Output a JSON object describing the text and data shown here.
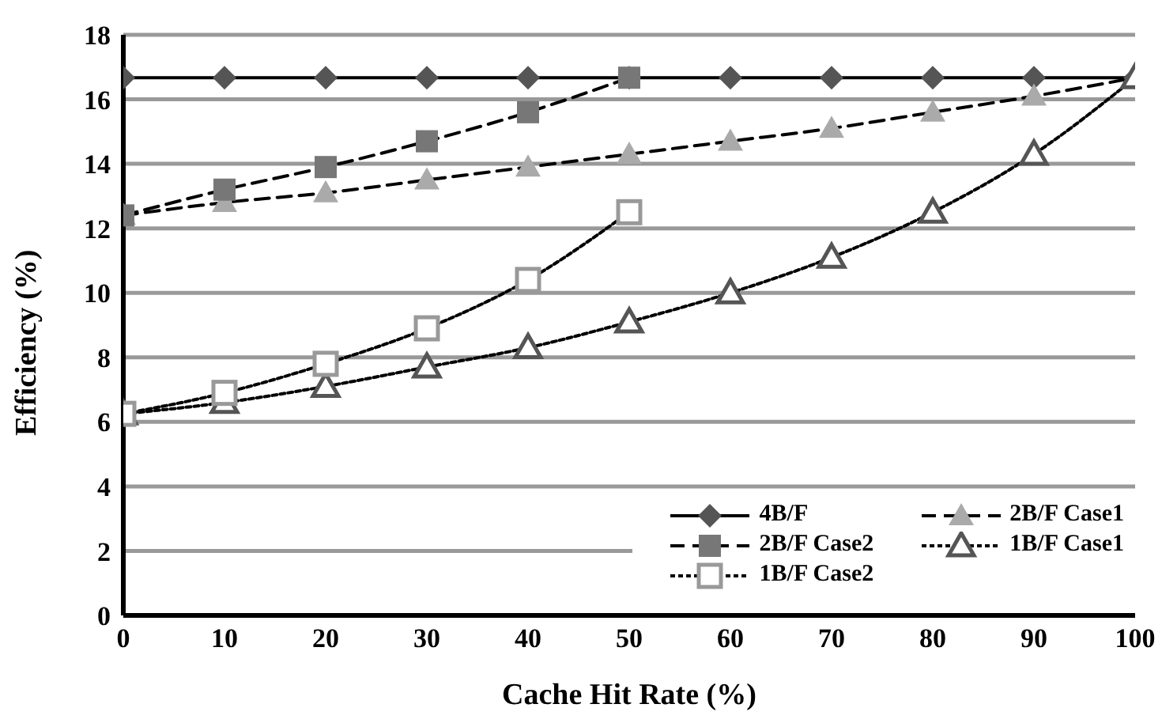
{
  "chart_data": {
    "type": "line",
    "xlabel": "Cache Hit Rate (%)",
    "ylabel": "Efficiency (%)",
    "x": [
      0,
      10,
      20,
      30,
      40,
      50,
      60,
      70,
      80,
      90,
      100
    ],
    "xlim": [
      0,
      100
    ],
    "xticks": [
      0,
      10,
      20,
      30,
      40,
      50,
      60,
      70,
      80,
      90,
      100
    ],
    "ylim": [
      0,
      18
    ],
    "yticks": [
      0,
      2,
      4,
      6,
      8,
      10,
      12,
      14,
      16,
      18
    ],
    "grid": "y",
    "legend": "bottom right",
    "series": [
      {
        "name": "4B/F",
        "color": "#555555",
        "marker": "diamond",
        "line_style": "solid",
        "values": [
          16.67,
          16.67,
          16.67,
          16.67,
          16.67,
          16.67,
          16.67,
          16.67,
          16.67,
          16.67,
          16.67
        ]
      },
      {
        "name": "2B/F Case1",
        "color": "#aaaaaa",
        "marker": "triangle",
        "line_style": "dashed",
        "values": [
          12.4,
          12.8,
          13.1,
          13.5,
          13.9,
          14.3,
          14.7,
          15.1,
          15.6,
          16.1,
          16.67
        ]
      },
      {
        "name": "2B/F Case2",
        "color": "#777777",
        "marker": "square",
        "line_style": "dashed",
        "values": [
          12.4,
          13.2,
          13.9,
          14.7,
          15.6,
          16.67,
          null,
          null,
          null,
          null,
          null
        ]
      },
      {
        "name": "1B/F Case1",
        "color": "#555555",
        "marker": "triangle",
        "line_style": "dotted",
        "values": [
          6.25,
          6.6,
          7.1,
          7.7,
          8.3,
          9.1,
          10.0,
          11.1,
          12.5,
          14.3,
          16.67
        ]
      },
      {
        "name": "1B/F Case2",
        "color": "#999999",
        "marker": "square",
        "line_style": "dotted",
        "values": [
          6.25,
          6.9,
          7.8,
          8.9,
          10.4,
          12.5,
          null,
          null,
          null,
          null,
          null
        ]
      }
    ]
  }
}
